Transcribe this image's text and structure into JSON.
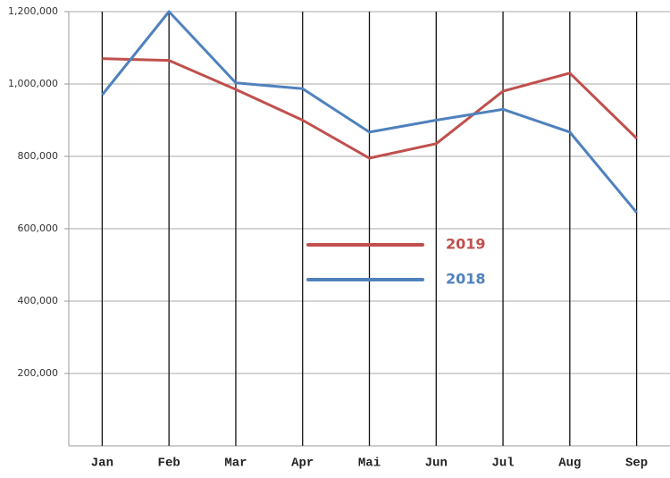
{
  "chart_data": {
    "type": "line",
    "categories": [
      "Jan",
      "Feb",
      "Mar",
      "Apr",
      "Mai",
      "Jun",
      "Jul",
      "Aug",
      "Sep"
    ],
    "series": [
      {
        "name": "2019",
        "color": "#c0504d",
        "values": [
          1070000,
          1065000,
          985000,
          900000,
          795000,
          835000,
          980000,
          1030000,
          850000
        ]
      },
      {
        "name": "2018",
        "color": "#4f81bd",
        "values": [
          970000,
          1200000,
          1003000,
          987000,
          867000,
          900000,
          930000,
          867000,
          645000
        ]
      }
    ],
    "ylim": [
      0,
      1200000
    ],
    "yticks": [
      {
        "value": 200000,
        "label": "200,000"
      },
      {
        "value": 400000,
        "label": "400,000"
      },
      {
        "value": 600000,
        "label": "600,000"
      },
      {
        "value": 800000,
        "label": "800,000"
      },
      {
        "value": 1000000,
        "label": "1,000,000"
      },
      {
        "value": 1200000,
        "label": "1,200,000"
      }
    ],
    "grid": true
  }
}
